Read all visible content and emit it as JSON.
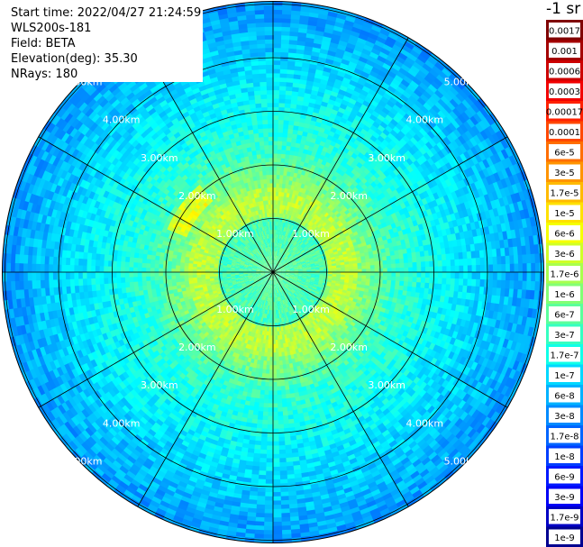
{
  "header": {
    "start_time": "Start time: 2022/04/27 21:24:59",
    "instrument": "WLS200s-181",
    "field": "Field: BETA",
    "elevation": "Elevation(deg): 35.30",
    "nrays": "NRays: 180"
  },
  "colorbar": {
    "title": "-1 sr",
    "labels": [
      "0.0017",
      "0.001",
      "0.0006",
      "0.0003",
      "0.00017",
      "0.0001",
      "6e-5",
      "3e-5",
      "1.7e-5",
      "1e-5",
      "6e-6",
      "3e-6",
      "1.7e-6",
      "1e-6",
      "6e-7",
      "3e-7",
      "1.7e-7",
      "1e-7",
      "6e-8",
      "3e-8",
      "1.7e-8",
      "1e-8",
      "6e-9",
      "3e-9",
      "1.7e-9",
      "1e-9"
    ],
    "colors": [
      "#7f0000",
      "#a40000",
      "#cc0000",
      "#f20000",
      "#ff2100",
      "#ff4700",
      "#ff6e00",
      "#ff9400",
      "#ffba00",
      "#ffe100",
      "#f6ff00",
      "#d0ff28",
      "#a9ff4e",
      "#83ff75",
      "#5cff9b",
      "#36ffc1",
      "#10ffe8",
      "#00d8ff",
      "#00b2ff",
      "#008bff",
      "#0065ff",
      "#003eff",
      "#0018ff",
      "#0000f6",
      "#0000c4",
      "#000090"
    ]
  },
  "chart_data": {
    "type": "heatmap",
    "projection": "polar (PPI)",
    "field": "BETA",
    "unit": "sr-1",
    "scale": "log",
    "n_rays": 180,
    "range_rings_km": [
      1,
      2,
      3,
      4,
      5
    ],
    "ring_label": "km",
    "range_labels": [
      "1.00km",
      "2.00km",
      "3.00km",
      "4.00km",
      "5.00km"
    ],
    "spokes_deg": [
      0,
      30,
      60,
      90,
      120,
      150,
      180,
      210,
      240,
      270,
      300,
      330
    ],
    "max_range_km": 5
  }
}
